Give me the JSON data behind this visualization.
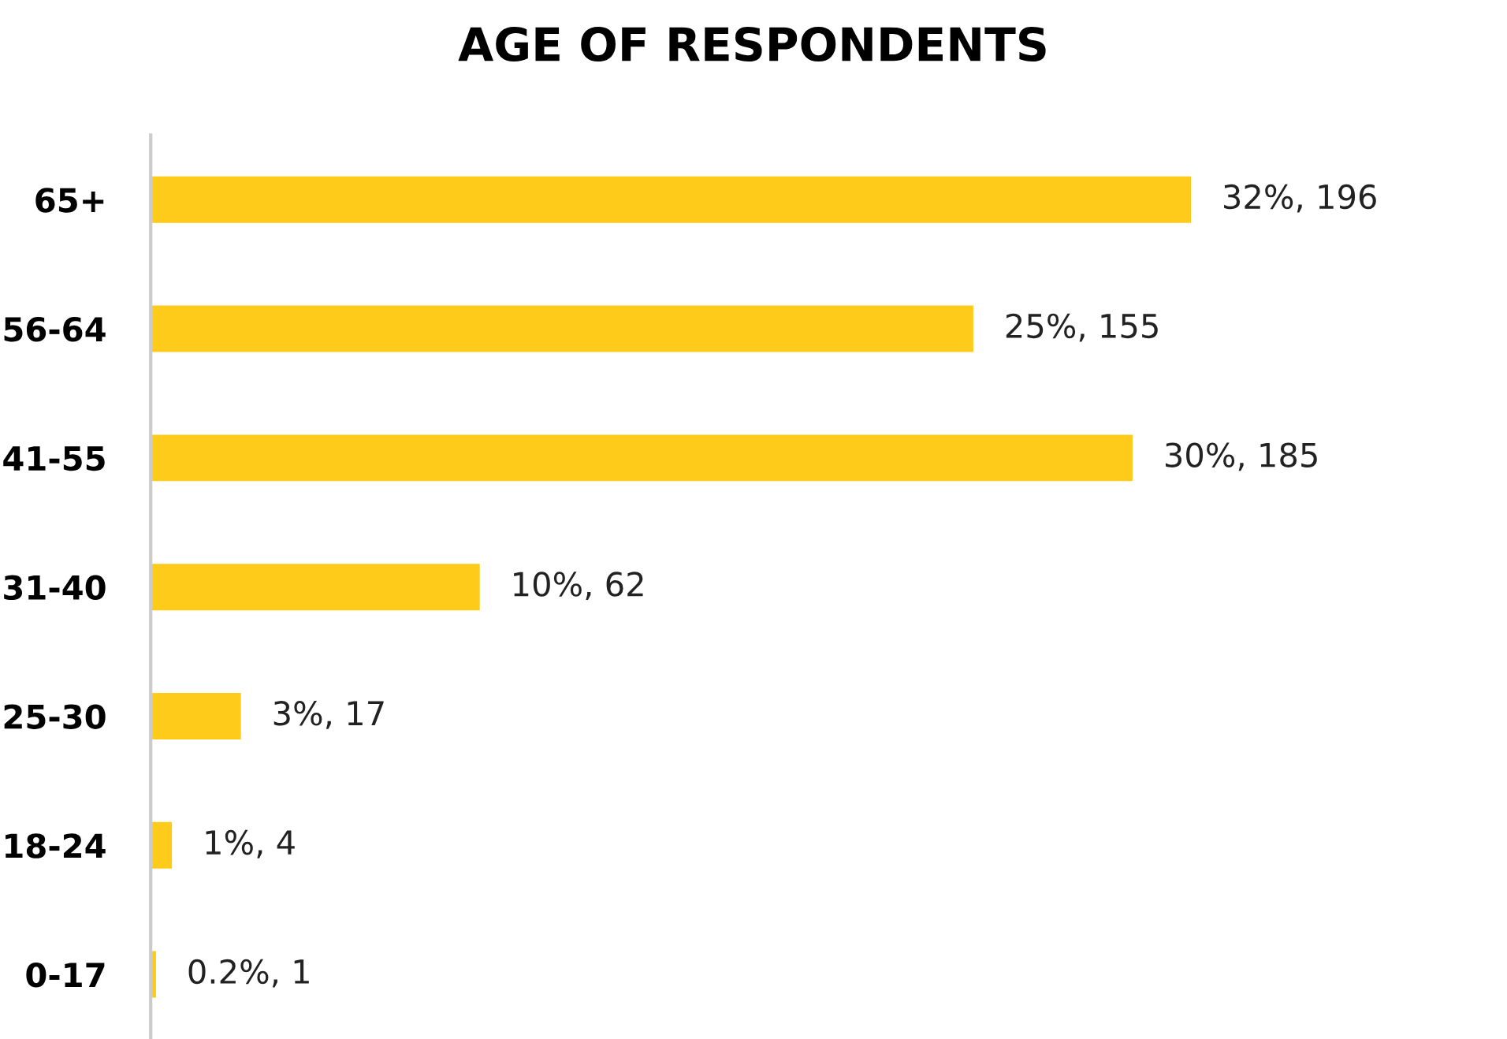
{
  "chart_data": {
    "type": "bar",
    "orientation": "horizontal",
    "title": "AGE OF RESPONDENTS",
    "categories": [
      "65+",
      "56-64",
      "41-55",
      "31-40",
      "25-30",
      "18-24",
      "0-17"
    ],
    "values": [
      196,
      155,
      185,
      62,
      17,
      4,
      1
    ],
    "value_labels": [
      "32%, 196",
      "25%, 155",
      "30%, 185",
      "10%, 62",
      "3%, 17",
      "1%, 4",
      "0.2%, 1"
    ],
    "color": "#fecb1a"
  }
}
